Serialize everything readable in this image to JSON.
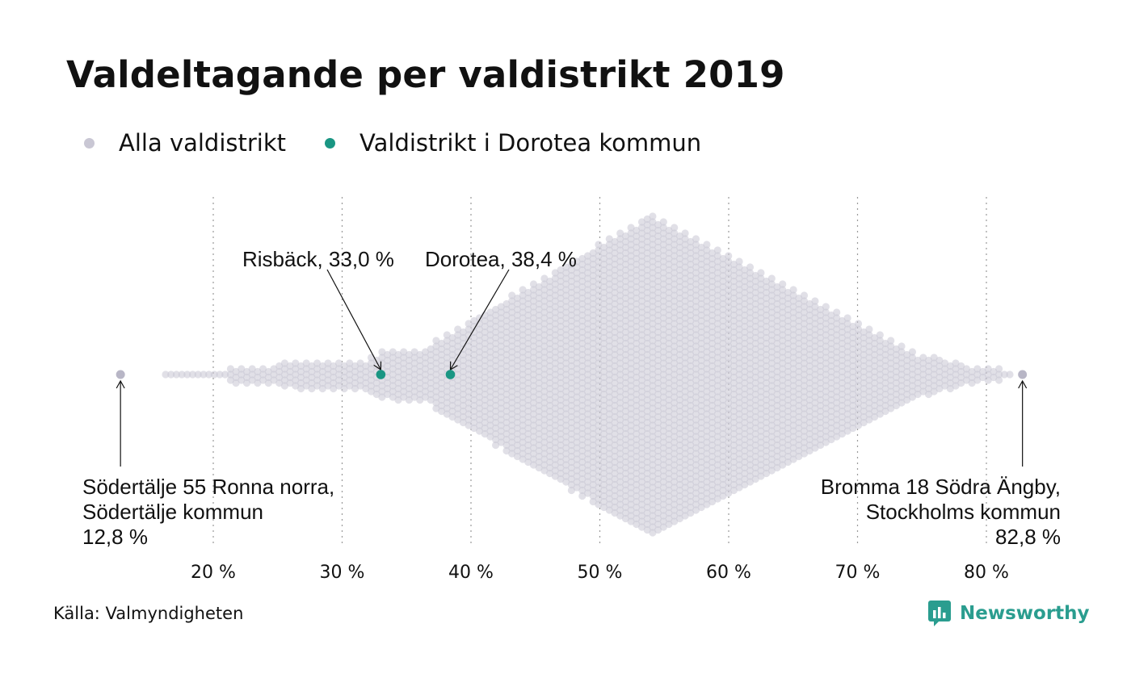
{
  "title": "Valdeltagande per valdistrikt 2019",
  "legend": {
    "all_label": "Alla valdistrikt",
    "highlight_label": "Valdistrikt i Dorotea kommun"
  },
  "colors": {
    "all": "#c9c7d4",
    "highlight": "#1a9683",
    "grid": "#9a9a9a",
    "text": "#111111",
    "brand": "#2a9d8f"
  },
  "source": "Källa: Valmyndigheten",
  "brand": {
    "name": "Newsworthy",
    "icon": "bar-chart-icon"
  },
  "chart_data": {
    "type": "scatter",
    "subtype": "beeswarm",
    "xlim": [
      12,
      84
    ],
    "x_ticks": [
      20,
      30,
      40,
      50,
      60,
      70,
      80
    ],
    "x_tick_labels": [
      "20 %",
      "30 %",
      "40 %",
      "50 %",
      "60 %",
      "70 %",
      "80 %"
    ],
    "grid": "vertical dotted",
    "distribution": {
      "series": "Alla valdistrikt",
      "approx_min": 12.8,
      "approx_max": 82.8,
      "approx_mode": 53.8
    },
    "highlighted": [
      {
        "label": "Risbäck, 33,0 %",
        "value": 33.0,
        "series": "Valdistrikt i Dorotea kommun"
      },
      {
        "label": "Dorotea, 38,4 %",
        "value": 38.4,
        "series": "Valdistrikt i Dorotea kommun"
      }
    ],
    "extremes": [
      {
        "lines": [
          "Södertälje 55 Ronna norra,",
          "Södertälje kommun",
          "12,8 %"
        ],
        "value": 12.8
      },
      {
        "lines": [
          "Bromma 18 Södra Ängby,",
          "Stockholms kommun",
          "82,8 %"
        ],
        "value": 82.8
      }
    ]
  }
}
